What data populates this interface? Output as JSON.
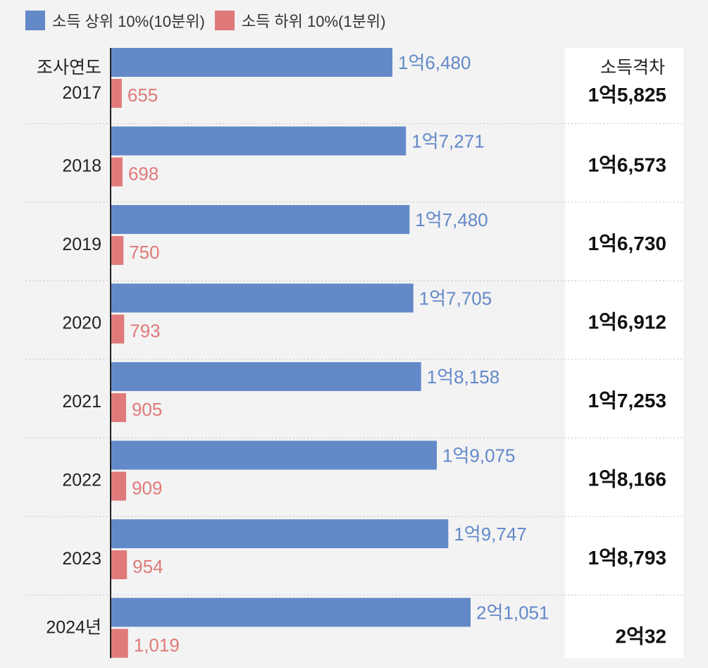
{
  "chart_data": {
    "type": "bar",
    "orientation": "horizontal",
    "title": "",
    "categories": [
      "2017",
      "2018",
      "2019",
      "2020",
      "2021",
      "2022",
      "2023",
      "2024년"
    ],
    "category_header": "조사연도",
    "series": [
      {
        "name": "소득 상위 10%(10분위)",
        "color": "#6389c9",
        "values": [
          16480,
          17271,
          17480,
          17705,
          18158,
          19075,
          19747,
          21051
        ],
        "labels": [
          "1억6,480",
          "1억7,271",
          "1억7,480",
          "1억7,705",
          "1억8,158",
          "1억9,075",
          "1억9,747",
          "2억1,051"
        ]
      },
      {
        "name": "소득 하위 10%(1분위)",
        "color": "#e07a7a",
        "values": [
          655,
          698,
          750,
          793,
          905,
          909,
          954,
          1019
        ],
        "labels": [
          "655",
          "698",
          "750",
          "793",
          "905",
          "909",
          "954",
          "1,019"
        ]
      }
    ],
    "gap_column": {
      "header": "소득격차",
      "values": [
        15825,
        16573,
        16730,
        16912,
        17253,
        18166,
        18793,
        20032
      ],
      "labels": [
        "1억5,825",
        "1억6,573",
        "1억6,730",
        "1억6,912",
        "1억7,253",
        "1억8,166",
        "1억8,793",
        "2억32"
      ]
    },
    "xlim": [
      0,
      22000
    ],
    "legend_position": "top-left",
    "grid": false
  }
}
